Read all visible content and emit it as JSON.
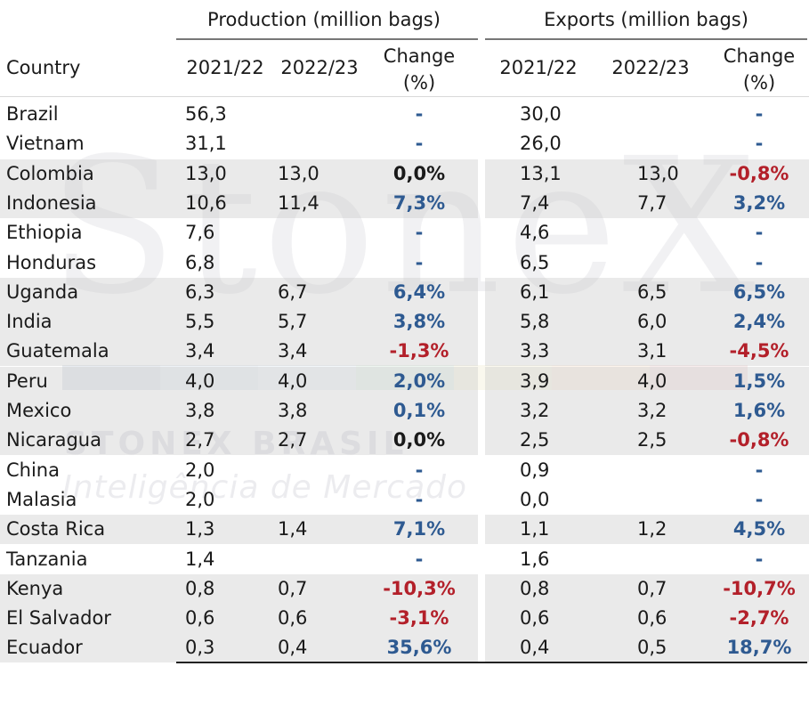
{
  "header": {
    "production_title": "Production (million bags)",
    "exports_title": "Exports (million bags)",
    "country_label": "Country",
    "col_2021": "2021/22",
    "col_2022": "2022/23",
    "change_line1": "Change",
    "change_line2": "(%)"
  },
  "watermark": {
    "brand": "StoneX",
    "brand_sub": "STONEX BRASIL",
    "brand_tag": "Inteligência de Mercado"
  },
  "colors": {
    "positive": "#2e5a91",
    "negative": "#b3202a",
    "shade": "#d9d9d9"
  },
  "rows": [
    {
      "country": "Brazil",
      "p21": "56,3",
      "p22": "",
      "pch": "-",
      "e21": "30,0",
      "e22": "",
      "ech": "-",
      "shade": false
    },
    {
      "country": "Vietnam",
      "p21": "31,1",
      "p22": "",
      "pch": "-",
      "e21": "26,0",
      "e22": "",
      "ech": "-",
      "shade": false
    },
    {
      "country": "Colombia",
      "p21": "13,0",
      "p22": "13,0",
      "pch": "0,0%",
      "e21": "13,1",
      "e22": "13,0",
      "ech": "-0,8%",
      "shade": true
    },
    {
      "country": "Indonesia",
      "p21": "10,6",
      "p22": "11,4",
      "pch": "7,3%",
      "e21": "7,4",
      "e22": "7,7",
      "ech": "3,2%",
      "shade": true
    },
    {
      "country": "Ethiopia",
      "p21": "7,6",
      "p22": "",
      "pch": "-",
      "e21": "4,6",
      "e22": "",
      "ech": "-",
      "shade": false
    },
    {
      "country": "Honduras",
      "p21": "6,8",
      "p22": "",
      "pch": "-",
      "e21": "6,5",
      "e22": "",
      "ech": "-",
      "shade": false
    },
    {
      "country": "Uganda",
      "p21": "6,3",
      "p22": "6,7",
      "pch": "6,4%",
      "e21": "6,1",
      "e22": "6,5",
      "ech": "6,5%",
      "shade": true
    },
    {
      "country": "India",
      "p21": "5,5",
      "p22": "5,7",
      "pch": "3,8%",
      "e21": "5,8",
      "e22": "6,0",
      "ech": "2,4%",
      "shade": true
    },
    {
      "country": "Guatemala",
      "p21": "3,4",
      "p22": "3,4",
      "pch": "-1,3%",
      "e21": "3,3",
      "e22": "3,1",
      "ech": "-4,5%",
      "shade": true
    },
    {
      "country": "Peru",
      "p21": "4,0",
      "p22": "4,0",
      "pch": "2,0%",
      "e21": "3,9",
      "e22": "4,0",
      "ech": "1,5%",
      "shade": true
    },
    {
      "country": "Mexico",
      "p21": "3,8",
      "p22": "3,8",
      "pch": "0,1%",
      "e21": "3,2",
      "e22": "3,2",
      "ech": "1,6%",
      "shade": true
    },
    {
      "country": "Nicaragua",
      "p21": "2,7",
      "p22": "2,7",
      "pch": "0,0%",
      "e21": "2,5",
      "e22": "2,5",
      "ech": "-0,8%",
      "shade": true
    },
    {
      "country": "China",
      "p21": "2,0",
      "p22": "",
      "pch": "-",
      "e21": "0,9",
      "e22": "",
      "ech": "-",
      "shade": false
    },
    {
      "country": "Malasia",
      "p21": "2,0",
      "p22": "",
      "pch": "-",
      "e21": "0,0",
      "e22": "",
      "ech": "-",
      "shade": false
    },
    {
      "country": "Costa Rica",
      "p21": "1,3",
      "p22": "1,4",
      "pch": "7,1%",
      "e21": "1,1",
      "e22": "1,2",
      "ech": "4,5%",
      "shade": true
    },
    {
      "country": "Tanzania",
      "p21": "1,4",
      "p22": "",
      "pch": "-",
      "e21": "1,6",
      "e22": "",
      "ech": "-",
      "shade": false
    },
    {
      "country": "Kenya",
      "p21": "0,8",
      "p22": "0,7",
      "pch": "-10,3%",
      "e21": "0,8",
      "e22": "0,7",
      "ech": "-10,7%",
      "shade": true
    },
    {
      "country": "El Salvador",
      "p21": "0,6",
      "p22": "0,6",
      "pch": "-3,1%",
      "e21": "0,6",
      "e22": "0,6",
      "ech": "-2,7%",
      "shade": true
    },
    {
      "country": "Ecuador",
      "p21": "0,3",
      "p22": "0,4",
      "pch": "35,6%",
      "e21": "0,4",
      "e22": "0,5",
      "ech": "18,7%",
      "shade": true
    }
  ]
}
